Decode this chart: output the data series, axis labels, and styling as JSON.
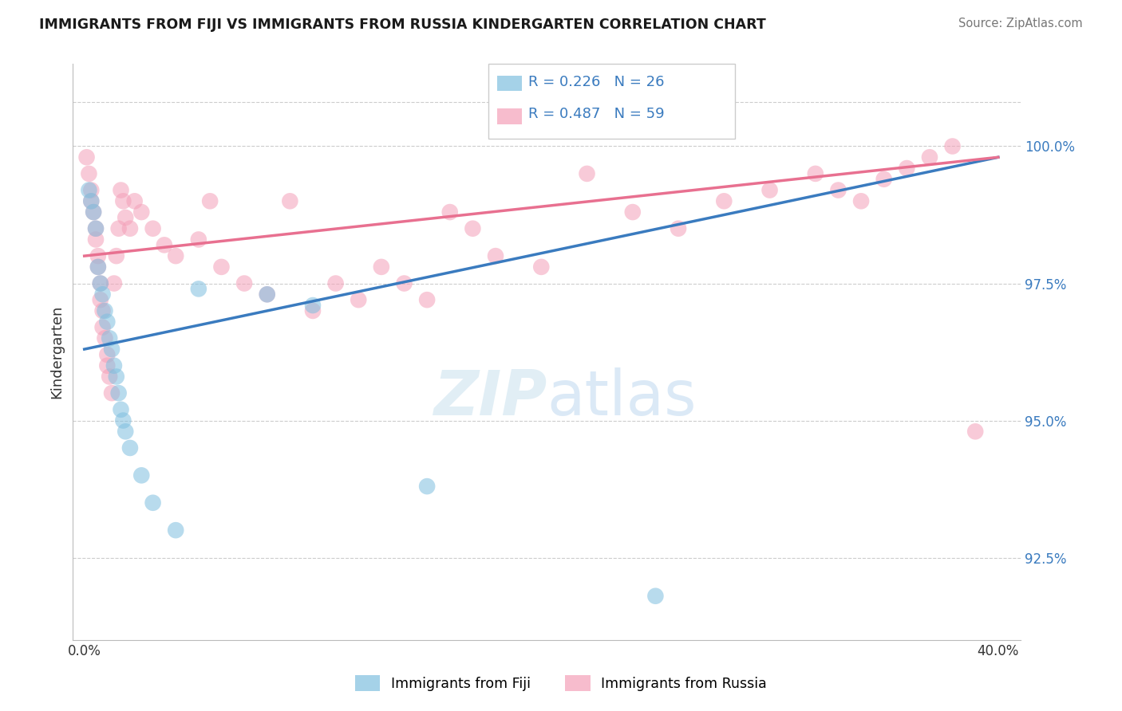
{
  "title": "IMMIGRANTS FROM FIJI VS IMMIGRANTS FROM RUSSIA KINDERGARTEN CORRELATION CHART",
  "source": "Source: ZipAtlas.com",
  "ylabel": "Kindergarten",
  "xlim_pct": [
    0.0,
    40.0
  ],
  "ylim_pct": [
    91.0,
    101.5
  ],
  "yticks": [
    92.5,
    95.0,
    97.5,
    100.0
  ],
  "ytick_labels": [
    "92.5%",
    "95.0%",
    "97.5%",
    "100.0%"
  ],
  "xtick_vals": [
    0.0,
    40.0
  ],
  "xtick_labels": [
    "0.0%",
    "40.0%"
  ],
  "fiji_R": "0.226",
  "fiji_N": "26",
  "russia_R": "0.487",
  "russia_N": "59",
  "fiji_color": "#7fbfdf",
  "russia_color": "#f4a0b8",
  "fiji_line_color": "#3a7bbf",
  "russia_line_color": "#e87090",
  "text_color": "#3a7bbf",
  "fiji_x": [
    0.2,
    0.3,
    0.4,
    0.5,
    0.6,
    0.7,
    0.8,
    0.9,
    1.0,
    1.1,
    1.2,
    1.3,
    1.4,
    1.5,
    1.6,
    1.7,
    1.8,
    2.0,
    2.5,
    3.0,
    4.0,
    5.0,
    8.0,
    10.0,
    15.0,
    25.0
  ],
  "fiji_y": [
    99.2,
    99.0,
    98.8,
    98.5,
    97.8,
    97.5,
    97.3,
    97.0,
    96.8,
    96.5,
    96.3,
    96.0,
    95.8,
    95.5,
    95.2,
    95.0,
    94.8,
    94.5,
    94.0,
    93.5,
    93.0,
    97.4,
    97.3,
    97.1,
    93.8,
    91.8
  ],
  "russia_x": [
    0.1,
    0.2,
    0.3,
    0.3,
    0.4,
    0.5,
    0.5,
    0.6,
    0.6,
    0.7,
    0.7,
    0.8,
    0.8,
    0.9,
    1.0,
    1.0,
    1.1,
    1.2,
    1.3,
    1.4,
    1.5,
    1.6,
    1.7,
    1.8,
    2.0,
    2.2,
    2.5,
    3.0,
    3.5,
    4.0,
    5.0,
    5.5,
    6.0,
    7.0,
    8.0,
    9.0,
    10.0,
    11.0,
    12.0,
    13.0,
    14.0,
    15.0,
    16.0,
    17.0,
    18.0,
    20.0,
    22.0,
    24.0,
    26.0,
    28.0,
    30.0,
    32.0,
    33.0,
    34.0,
    35.0,
    36.0,
    37.0,
    38.0,
    39.0
  ],
  "russia_y": [
    99.8,
    99.5,
    99.2,
    99.0,
    98.8,
    98.5,
    98.3,
    98.0,
    97.8,
    97.5,
    97.2,
    97.0,
    96.7,
    96.5,
    96.2,
    96.0,
    95.8,
    95.5,
    97.5,
    98.0,
    98.5,
    99.2,
    99.0,
    98.7,
    98.5,
    99.0,
    98.8,
    98.5,
    98.2,
    98.0,
    98.3,
    99.0,
    97.8,
    97.5,
    97.3,
    99.0,
    97.0,
    97.5,
    97.2,
    97.8,
    97.5,
    97.2,
    98.8,
    98.5,
    98.0,
    97.8,
    99.5,
    98.8,
    98.5,
    99.0,
    99.2,
    99.5,
    99.2,
    99.0,
    99.4,
    99.6,
    99.8,
    100.0,
    94.8
  ]
}
